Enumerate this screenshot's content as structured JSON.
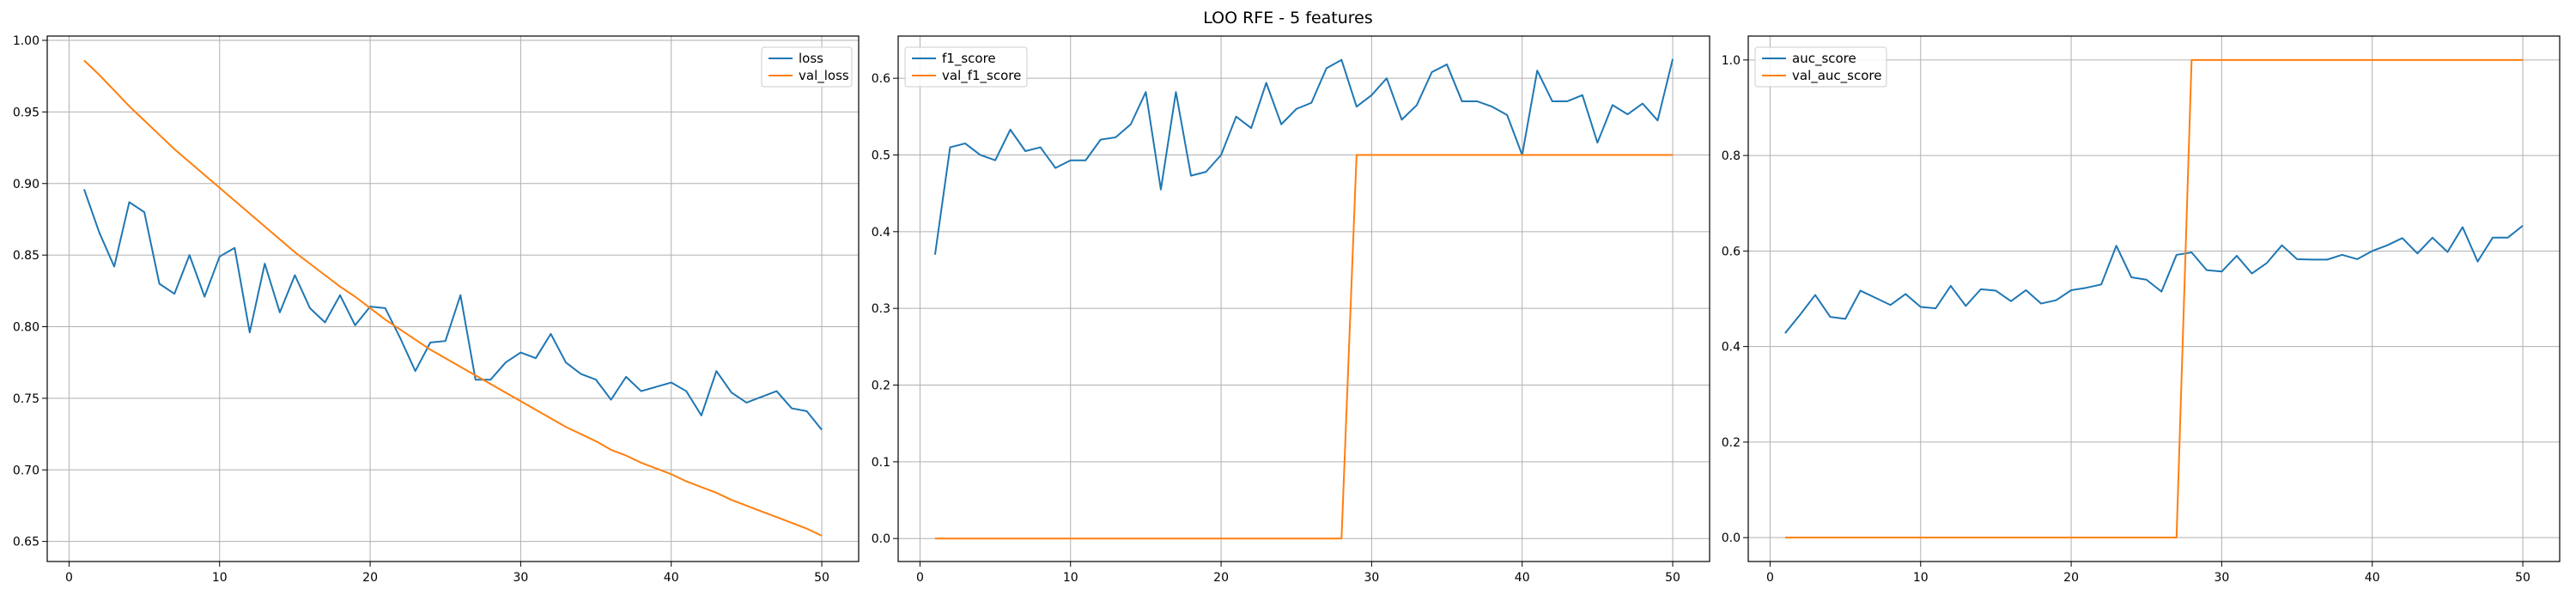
{
  "figure": {
    "title": "LOO RFE - 5 features"
  },
  "colors": {
    "series_1": "#1f77b4",
    "series_2": "#ff7f0e",
    "grid": "#b0b0b0",
    "axes": "#000000"
  },
  "chart_data": [
    {
      "type": "line",
      "title": "",
      "xlabel": "",
      "ylabel": "",
      "grid": true,
      "legend_position": "top-right",
      "xlim": [
        -1.45,
        52.45
      ],
      "ylim": [
        0.636,
        1.003
      ],
      "xticks": [
        0,
        10,
        20,
        30,
        40,
        50
      ],
      "yticks": [
        0.65,
        0.7,
        0.75,
        0.8,
        0.85,
        0.9,
        0.95,
        1.0
      ],
      "ytick_labels": [
        "0.65",
        "0.70",
        "0.75",
        "0.80",
        "0.85",
        "0.90",
        "0.95",
        "1.00"
      ],
      "x": [
        1,
        2,
        3,
        4,
        5,
        6,
        7,
        8,
        9,
        10,
        11,
        12,
        13,
        14,
        15,
        16,
        17,
        18,
        19,
        20,
        21,
        22,
        23,
        24,
        25,
        26,
        27,
        28,
        29,
        30,
        31,
        32,
        33,
        34,
        35,
        36,
        37,
        38,
        39,
        40,
        41,
        42,
        43,
        44,
        45,
        46,
        47,
        48,
        49,
        50
      ],
      "series": [
        {
          "name": "loss",
          "color": "#1f77b4",
          "values": [
            0.896,
            0.866,
            0.842,
            0.887,
            0.88,
            0.83,
            0.823,
            0.85,
            0.821,
            0.849,
            0.855,
            0.796,
            0.844,
            0.81,
            0.836,
            0.813,
            0.803,
            0.822,
            0.801,
            0.814,
            0.813,
            0.792,
            0.769,
            0.789,
            0.79,
            0.822,
            0.763,
            0.763,
            0.775,
            0.782,
            0.778,
            0.795,
            0.775,
            0.767,
            0.763,
            0.749,
            0.765,
            0.755,
            0.758,
            0.761,
            0.755,
            0.738,
            0.769,
            0.754,
            0.747,
            0.751,
            0.755,
            0.743,
            0.741,
            0.728
          ]
        },
        {
          "name": "val_loss",
          "color": "#ff7f0e",
          "values": [
            0.986,
            0.976,
            0.965,
            0.954,
            0.944,
            0.934,
            0.924,
            0.915,
            0.906,
            0.897,
            0.888,
            0.879,
            0.87,
            0.861,
            0.852,
            0.844,
            0.836,
            0.828,
            0.821,
            0.813,
            0.805,
            0.798,
            0.791,
            0.784,
            0.778,
            0.772,
            0.766,
            0.76,
            0.754,
            0.748,
            0.742,
            0.736,
            0.73,
            0.725,
            0.72,
            0.714,
            0.71,
            0.705,
            0.701,
            0.697,
            0.692,
            0.688,
            0.684,
            0.679,
            0.675,
            0.671,
            0.667,
            0.663,
            0.659,
            0.654
          ]
        }
      ]
    },
    {
      "type": "line",
      "title": "",
      "xlabel": "",
      "ylabel": "",
      "grid": true,
      "legend_position": "top-left",
      "xlim": [
        -1.45,
        52.45
      ],
      "ylim": [
        -0.03,
        0.655
      ],
      "xticks": [
        0,
        10,
        20,
        30,
        40,
        50
      ],
      "yticks": [
        0.0,
        0.1,
        0.2,
        0.3,
        0.4,
        0.5,
        0.6
      ],
      "ytick_labels": [
        "0.0",
        "0.1",
        "0.2",
        "0.3",
        "0.4",
        "0.5",
        "0.6"
      ],
      "x": [
        1,
        2,
        3,
        4,
        5,
        6,
        7,
        8,
        9,
        10,
        11,
        12,
        13,
        14,
        15,
        16,
        17,
        18,
        19,
        20,
        21,
        22,
        23,
        24,
        25,
        26,
        27,
        28,
        29,
        30,
        31,
        32,
        33,
        34,
        35,
        36,
        37,
        38,
        39,
        40,
        41,
        42,
        43,
        44,
        45,
        46,
        47,
        48,
        49,
        50
      ],
      "series": [
        {
          "name": "f1_score",
          "color": "#1f77b4",
          "values": [
            0.37,
            0.51,
            0.515,
            0.5,
            0.493,
            0.533,
            0.505,
            0.51,
            0.483,
            0.493,
            0.493,
            0.52,
            0.523,
            0.54,
            0.582,
            0.455,
            0.582,
            0.473,
            0.478,
            0.5,
            0.55,
            0.535,
            0.594,
            0.54,
            0.56,
            0.568,
            0.613,
            0.624,
            0.563,
            0.578,
            0.6,
            0.546,
            0.565,
            0.608,
            0.618,
            0.57,
            0.57,
            0.563,
            0.552,
            0.5,
            0.61,
            0.57,
            0.57,
            0.578,
            0.516,
            0.565,
            0.553,
            0.567,
            0.545,
            0.625
          ]
        },
        {
          "name": "val_f1_score",
          "color": "#ff7f0e",
          "values": [
            0,
            0,
            0,
            0,
            0,
            0,
            0,
            0,
            0,
            0,
            0,
            0,
            0,
            0,
            0,
            0,
            0,
            0,
            0,
            0,
            0,
            0,
            0,
            0,
            0,
            0,
            0,
            0,
            0.5,
            0.5,
            0.5,
            0.5,
            0.5,
            0.5,
            0.5,
            0.5,
            0.5,
            0.5,
            0.5,
            0.5,
            0.5,
            0.5,
            0.5,
            0.5,
            0.5,
            0.5,
            0.5,
            0.5,
            0.5,
            0.5
          ]
        }
      ]
    },
    {
      "type": "line",
      "title": "",
      "xlabel": "",
      "ylabel": "",
      "grid": true,
      "legend_position": "top-left",
      "xlim": [
        -1.45,
        52.45
      ],
      "ylim": [
        -0.05,
        1.05
      ],
      "xticks": [
        0,
        10,
        20,
        30,
        40,
        50
      ],
      "yticks": [
        0.0,
        0.2,
        0.4,
        0.6,
        0.8,
        1.0
      ],
      "ytick_labels": [
        "0.0",
        "0.2",
        "0.4",
        "0.6",
        "0.8",
        "1.0"
      ],
      "x": [
        1,
        2,
        3,
        4,
        5,
        6,
        7,
        8,
        9,
        10,
        11,
        12,
        13,
        14,
        15,
        16,
        17,
        18,
        19,
        20,
        21,
        22,
        23,
        24,
        25,
        26,
        27,
        28,
        29,
        30,
        31,
        32,
        33,
        34,
        35,
        36,
        37,
        38,
        39,
        40,
        41,
        42,
        43,
        44,
        45,
        46,
        47,
        48,
        49,
        50
      ],
      "series": [
        {
          "name": "auc_score",
          "color": "#1f77b4",
          "values": [
            0.428,
            0.467,
            0.508,
            0.462,
            0.458,
            0.517,
            0.502,
            0.487,
            0.51,
            0.483,
            0.48,
            0.527,
            0.485,
            0.52,
            0.517,
            0.495,
            0.518,
            0.49,
            0.497,
            0.518,
            0.523,
            0.53,
            0.611,
            0.545,
            0.54,
            0.515,
            0.592,
            0.597,
            0.56,
            0.557,
            0.59,
            0.553,
            0.575,
            0.612,
            0.583,
            0.582,
            0.582,
            0.592,
            0.583,
            0.6,
            0.612,
            0.627,
            0.595,
            0.628,
            0.598,
            0.65,
            0.578,
            0.628,
            0.628,
            0.653
          ]
        },
        {
          "name": "val_auc_score",
          "color": "#ff7f0e",
          "values": [
            0,
            0,
            0,
            0,
            0,
            0,
            0,
            0,
            0,
            0,
            0,
            0,
            0,
            0,
            0,
            0,
            0,
            0,
            0,
            0,
            0,
            0,
            0,
            0,
            0,
            0,
            0,
            1,
            1,
            1,
            1,
            1,
            1,
            1,
            1,
            1,
            1,
            1,
            1,
            1,
            1,
            1,
            1,
            1,
            1,
            1,
            1,
            1,
            1,
            1
          ]
        }
      ]
    }
  ]
}
